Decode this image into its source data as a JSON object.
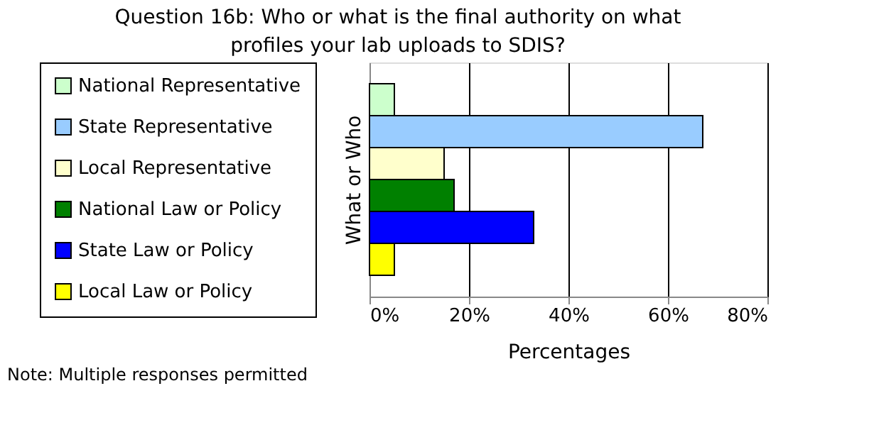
{
  "chart_data": {
    "type": "bar",
    "orientation": "horizontal",
    "title": "Question 16b: Who or what is the final authority on what profiles your lab uploads to SDIS?",
    "xlabel": "Percentages",
    "ylabel": "What or Who",
    "categories": [
      null
    ],
    "series": [
      {
        "name": "National Representative",
        "color": "#ccffcc",
        "values": [
          5
        ]
      },
      {
        "name": "State Representative",
        "color": "#99ccff",
        "values": [
          67
        ]
      },
      {
        "name": "Local Representative",
        "color": "#ffffcc",
        "values": [
          15
        ]
      },
      {
        "name": "National Law or Policy",
        "color": "#008000",
        "values": [
          17
        ]
      },
      {
        "name": "State Law or Policy",
        "color": "#0000ff",
        "values": [
          33
        ]
      },
      {
        "name": "Local Law or Policy",
        "color": "#ffff00",
        "values": [
          5
        ]
      }
    ],
    "xlim": [
      0,
      80
    ],
    "xticks": [
      {
        "value": 0,
        "label": "0%"
      },
      {
        "value": 20,
        "label": "20%"
      },
      {
        "value": 40,
        "label": "40%"
      },
      {
        "value": 60,
        "label": "60%"
      },
      {
        "value": 80,
        "label": "80%"
      }
    ],
    "grid": "x",
    "legend": "left",
    "annotations": [
      "Note: Multiple responses permitted"
    ]
  }
}
